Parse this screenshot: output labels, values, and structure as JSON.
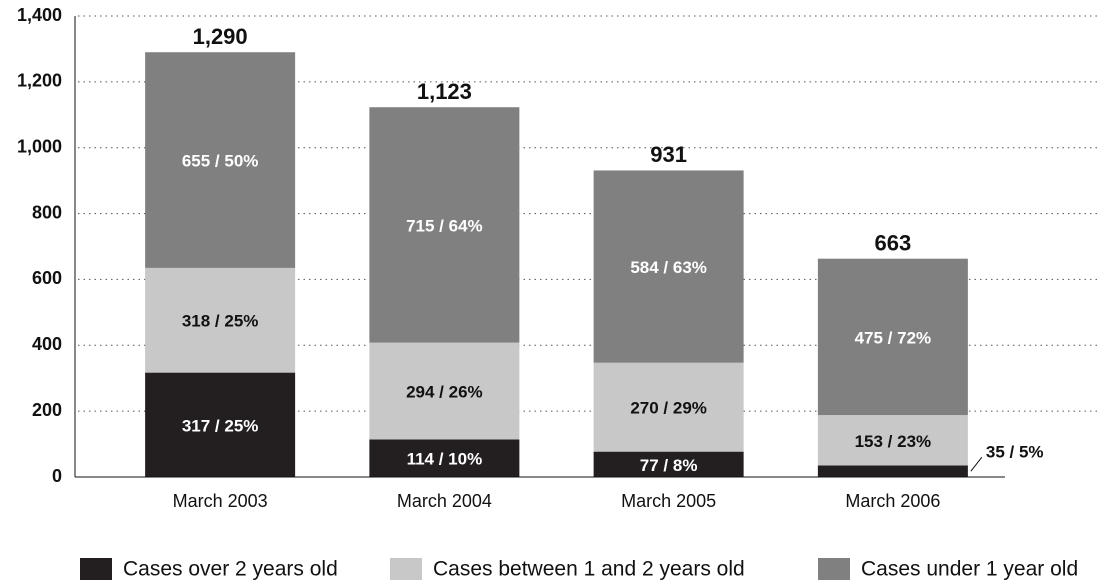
{
  "chart_data": {
    "type": "stacked_bar",
    "categories": [
      "March 2003",
      "March 2004",
      "March 2005",
      "March 2006"
    ],
    "series": [
      {
        "name": "Cases over 2 years old",
        "color": "#231f20",
        "values": [
          317,
          114,
          77,
          35
        ],
        "value_labels": [
          "317 / 25%",
          "114 / 10%",
          "77 / 8%",
          "35 / 5%"
        ]
      },
      {
        "name": "Cases between 1 and 2 years old",
        "color": "#c8c8c8",
        "values": [
          318,
          294,
          270,
          153
        ],
        "value_labels": [
          "318 / 25%",
          "294 / 26%",
          "270 / 29%",
          "153 / 23%"
        ]
      },
      {
        "name": "Cases under 1 year old",
        "color": "#808080",
        "values": [
          655,
          715,
          584,
          475
        ],
        "value_labels": [
          "655 / 50%",
          "715 / 64%",
          "584 / 63%",
          "475 / 72%"
        ]
      }
    ],
    "totals": {
      "values": [
        1290,
        1123,
        931,
        663
      ],
      "value_labels": [
        "1,290",
        "1,123",
        "931",
        "663"
      ]
    },
    "ylim": [
      0,
      1400
    ],
    "yticks": [
      0,
      200,
      400,
      600,
      800,
      {
        "value": 1000,
        "label": "1,000"
      },
      {
        "value": 1200,
        "label": "1,200"
      },
      {
        "value": 1400,
        "label": "1,400"
      }
    ],
    "grid": true,
    "legend": "bottom"
  }
}
